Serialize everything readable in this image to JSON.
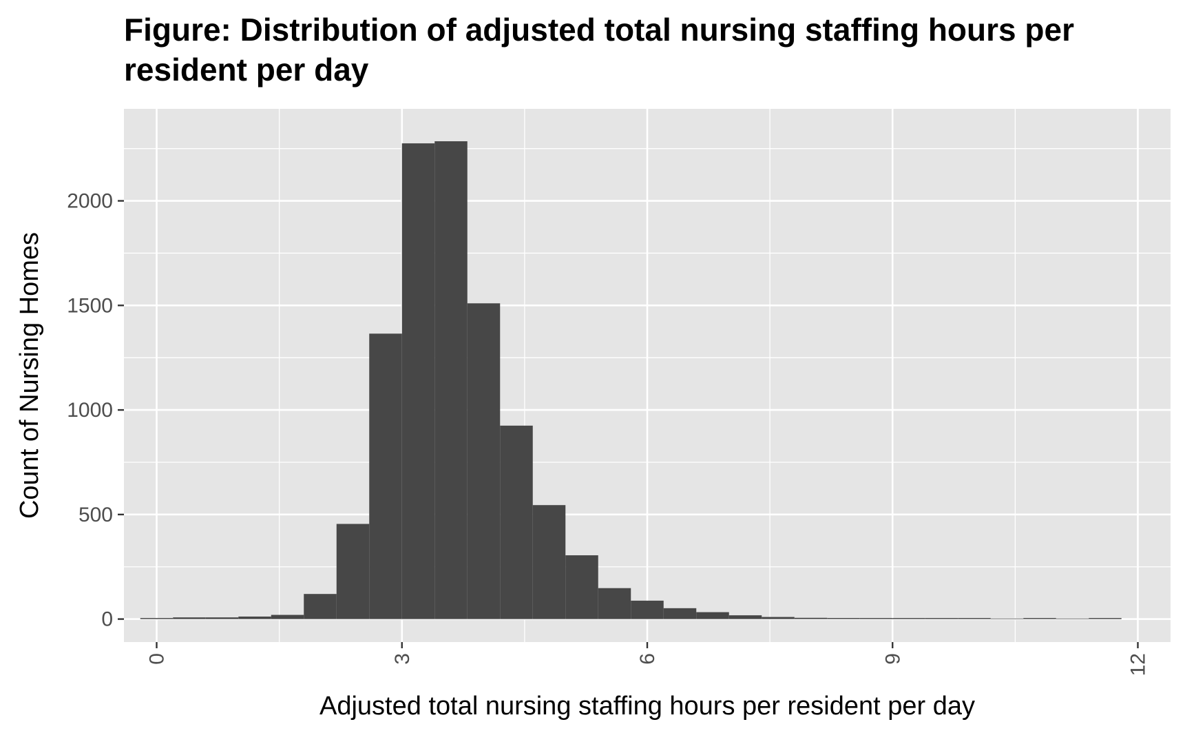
{
  "chart_data": {
    "type": "bar",
    "title": "Figure: Distribution of adjusted total nursing staffing hours per resident per day",
    "xlabel": "Adjusted total nursing staffing hours per resident per day",
    "ylabel": "Count of Nursing Homes",
    "xlim": [
      -0.4,
      12.4
    ],
    "ylim": [
      -110,
      2440
    ],
    "xticks": [
      "0",
      "3",
      "6",
      "9",
      "12"
    ],
    "yticks": [
      "0",
      "500",
      "1000",
      "1500",
      "2000"
    ],
    "bin_width": 0.4,
    "bins": [
      {
        "x0": -0.2,
        "x1": 0.2,
        "value": 2
      },
      {
        "x0": 0.2,
        "x1": 0.6,
        "value": 8
      },
      {
        "x0": 0.6,
        "x1": 1.0,
        "value": 8
      },
      {
        "x0": 1.0,
        "x1": 1.4,
        "value": 12
      },
      {
        "x0": 1.4,
        "x1": 1.8,
        "value": 20
      },
      {
        "x0": 1.8,
        "x1": 2.2,
        "value": 120
      },
      {
        "x0": 2.2,
        "x1": 2.6,
        "value": 455
      },
      {
        "x0": 2.6,
        "x1": 3.0,
        "value": 1365
      },
      {
        "x0": 3.0,
        "x1": 3.4,
        "value": 2275
      },
      {
        "x0": 3.4,
        "x1": 3.8,
        "value": 2285
      },
      {
        "x0": 3.8,
        "x1": 4.2,
        "value": 1510
      },
      {
        "x0": 4.2,
        "x1": 4.6,
        "value": 925
      },
      {
        "x0": 4.6,
        "x1": 5.0,
        "value": 545
      },
      {
        "x0": 5.0,
        "x1": 5.4,
        "value": 305
      },
      {
        "x0": 5.4,
        "x1": 5.8,
        "value": 148
      },
      {
        "x0": 5.8,
        "x1": 6.2,
        "value": 88
      },
      {
        "x0": 6.2,
        "x1": 6.6,
        "value": 52
      },
      {
        "x0": 6.6,
        "x1": 7.0,
        "value": 33
      },
      {
        "x0": 7.0,
        "x1": 7.4,
        "value": 18
      },
      {
        "x0": 7.4,
        "x1": 7.8,
        "value": 10
      },
      {
        "x0": 7.8,
        "x1": 8.2,
        "value": 6
      },
      {
        "x0": 8.2,
        "x1": 8.6,
        "value": 5
      },
      {
        "x0": 8.6,
        "x1": 9.0,
        "value": 4
      },
      {
        "x0": 9.0,
        "x1": 9.4,
        "value": 3
      },
      {
        "x0": 9.4,
        "x1": 9.8,
        "value": 2
      },
      {
        "x0": 9.8,
        "x1": 10.2,
        "value": 1
      },
      {
        "x0": 10.2,
        "x1": 10.6,
        "value": 0
      },
      {
        "x0": 10.6,
        "x1": 11.0,
        "value": 1
      },
      {
        "x0": 11.0,
        "x1": 11.4,
        "value": 0
      },
      {
        "x0": 11.4,
        "x1": 11.8,
        "value": 1
      }
    ],
    "grid": true,
    "legend": "none",
    "bar_color": "#474747",
    "panel_color": "#e5e5e5",
    "grid_color": "#ffffff"
  }
}
